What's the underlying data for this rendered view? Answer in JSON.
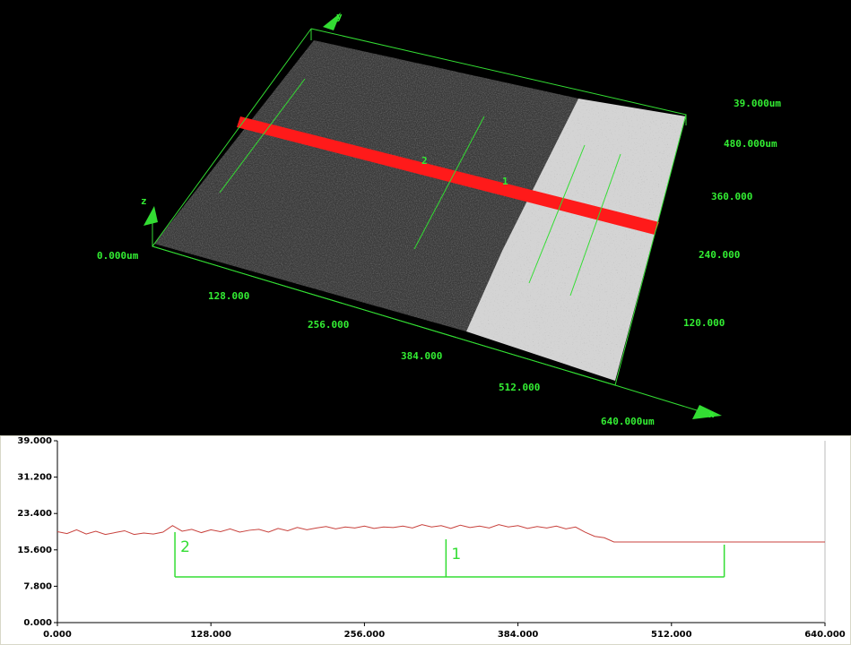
{
  "surface_view": {
    "z_labels": [
      "39.000um"
    ],
    "y_labels": [
      "480.000um",
      "360.000",
      "240.000",
      "120.000"
    ],
    "origin_label": "0.000um",
    "x_labels": [
      "128.000",
      "256.000",
      "384.000",
      "512.000",
      "640.000um"
    ],
    "axis_names": [
      "z",
      "y",
      "x"
    ],
    "cursor_labels": [
      "2",
      "1"
    ]
  },
  "chart_data": {
    "type": "line",
    "color": "#c8413c",
    "x": [
      0,
      8,
      16,
      24,
      32,
      40,
      48,
      56,
      64,
      72,
      80,
      88,
      96,
      104,
      112,
      120,
      128,
      136,
      144,
      152,
      160,
      168,
      176,
      184,
      192,
      200,
      208,
      216,
      224,
      232,
      240,
      248,
      256,
      264,
      272,
      280,
      288,
      296,
      304,
      312,
      320,
      328,
      336,
      344,
      352,
      360,
      368,
      376,
      384,
      392,
      400,
      408,
      416,
      424,
      432,
      440,
      448,
      456,
      464,
      472,
      480,
      488,
      496,
      504,
      512,
      520,
      528,
      536,
      544,
      552,
      560,
      568,
      576,
      584,
      592,
      600,
      608,
      616,
      624,
      632,
      640
    ],
    "values": [
      19.5,
      19.1,
      19.9,
      19.0,
      19.6,
      18.9,
      19.3,
      19.7,
      18.9,
      19.2,
      19.0,
      19.4,
      20.8,
      19.6,
      20.0,
      19.3,
      19.9,
      19.5,
      20.1,
      19.4,
      19.8,
      20.0,
      19.4,
      20.2,
      19.7,
      20.4,
      19.9,
      20.3,
      20.6,
      20.1,
      20.5,
      20.3,
      20.7,
      20.2,
      20.5,
      20.4,
      20.7,
      20.3,
      21.0,
      20.5,
      20.8,
      20.2,
      20.9,
      20.4,
      20.7,
      20.3,
      21.0,
      20.5,
      20.8,
      20.2,
      20.6,
      20.3,
      20.7,
      20.1,
      20.5,
      19.4,
      18.5,
      18.2,
      17.3,
      17.3,
      17.3,
      17.3,
      17.3,
      17.3,
      17.3,
      17.3,
      17.3,
      17.3,
      17.3,
      17.3,
      17.3,
      17.3,
      17.3,
      17.3,
      17.3,
      17.3,
      17.3,
      17.3,
      17.3,
      17.3,
      17.3
    ],
    "xlim": [
      0,
      640
    ],
    "ylim": [
      0,
      39
    ],
    "xticks": [
      {
        "value": 0,
        "label": "0.000"
      },
      {
        "value": 128,
        "label": "128.000"
      },
      {
        "value": 256,
        "label": "256.000"
      },
      {
        "value": 384,
        "label": "384.000"
      },
      {
        "value": 512,
        "label": "512.000"
      },
      {
        "value": 640,
        "label": "640.000"
      }
    ],
    "yticks": [
      {
        "value": 0,
        "label": "0.000"
      },
      {
        "value": 7.8,
        "label": "7.800"
      },
      {
        "value": 15.6,
        "label": "15.600"
      },
      {
        "value": 23.4,
        "label": "23.400"
      },
      {
        "value": 31.2,
        "label": "31.200"
      },
      {
        "value": 39,
        "label": "39.000"
      }
    ],
    "cursor_color": "#33dd33",
    "cursors": [
      {
        "label": "2",
        "x": 98
      },
      {
        "label": "1",
        "x": 324
      }
    ],
    "bracket": {
      "y": 9.8,
      "x_end": 556
    }
  }
}
